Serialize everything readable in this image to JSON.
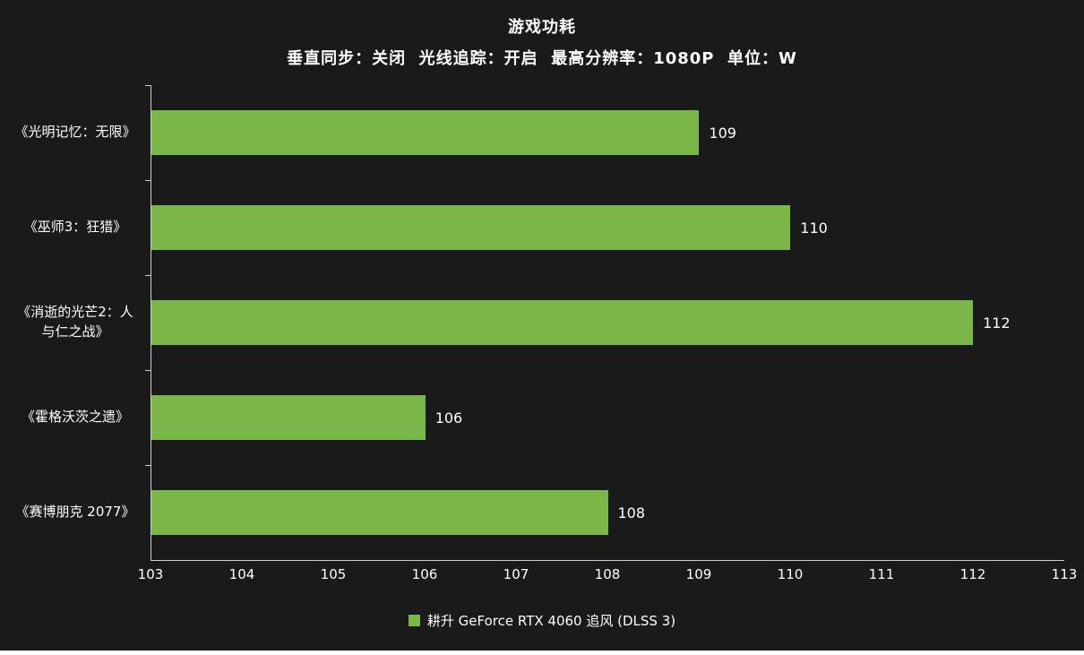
{
  "chart_data": {
    "type": "bar",
    "orientation": "horizontal",
    "title": "游戏功耗",
    "subtitle": "垂直同步：关闭  光线追踪：开启  最高分辨率：1080P  单位：W",
    "categories": [
      "《光明记忆：无限》",
      "《巫师3：狂猎》",
      "《消逝的光芒2：人与仁之战》",
      "《霍格沃茨之遗》",
      "《赛博朋克 2077》"
    ],
    "values": [
      109,
      110,
      112,
      106,
      108
    ],
    "xlim": [
      103,
      113
    ],
    "x_ticks": [
      103,
      104,
      105,
      106,
      107,
      108,
      109,
      110,
      111,
      112,
      113
    ],
    "legend": "耕升 GeForce RTX 4060 追风 (DLSS 3)",
    "bar_color": "#7ab648",
    "background_color": "#1a1a1a",
    "text_color": "#ffffff",
    "grid": false,
    "legend_position": "bottom"
  }
}
